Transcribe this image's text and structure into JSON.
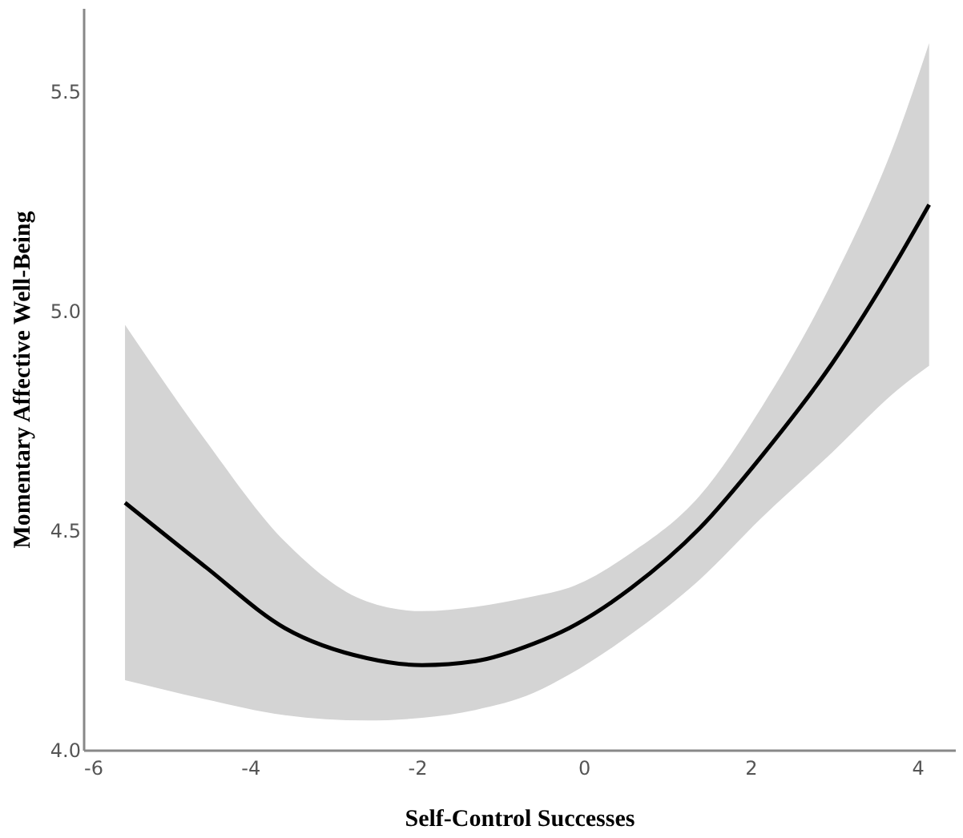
{
  "chart_data": {
    "type": "line",
    "xlabel": "Self-Control Successes",
    "ylabel": "Momentary Affective Well-Being",
    "xlim": [
      -6,
      4.45
    ],
    "xticks": [
      -6,
      -4,
      -2,
      0,
      2,
      4
    ],
    "ylim": [
      4.0,
      5.69
    ],
    "yticks": [
      {
        "value": 4,
        "label": "4.0"
      },
      4.5,
      {
        "value": 5,
        "label": "5.0"
      },
      5.5
    ],
    "grid": false,
    "marker": "none",
    "line_style": "solid",
    "series": [
      {
        "color": "#000000",
        "x": [
          -5.5,
          -4.55,
          -3.58,
          -2.6,
          -1.94,
          -1.3,
          -0.6,
          -0.18,
          0.57,
          1.39,
          2.14,
          2.98,
          3.76,
          4.14
        ],
        "values": [
          4.563,
          4.419,
          4.277,
          4.209,
          4.193,
          4.202,
          4.242,
          4.277,
          4.369,
          4.505,
          4.671,
          4.881,
          5.116,
          5.242
        ],
        "lower": [
          4.159,
          4.116,
          4.079,
          4.067,
          4.073,
          4.091,
          4.13,
          4.171,
          4.264,
          4.388,
          4.53,
          4.678,
          4.82,
          4.875
        ],
        "upper": [
          4.968,
          4.709,
          4.474,
          4.338,
          4.316,
          4.326,
          4.35,
          4.369,
          4.449,
          4.579,
          4.783,
          5.067,
          5.4,
          5.61
        ]
      }
    ]
  }
}
